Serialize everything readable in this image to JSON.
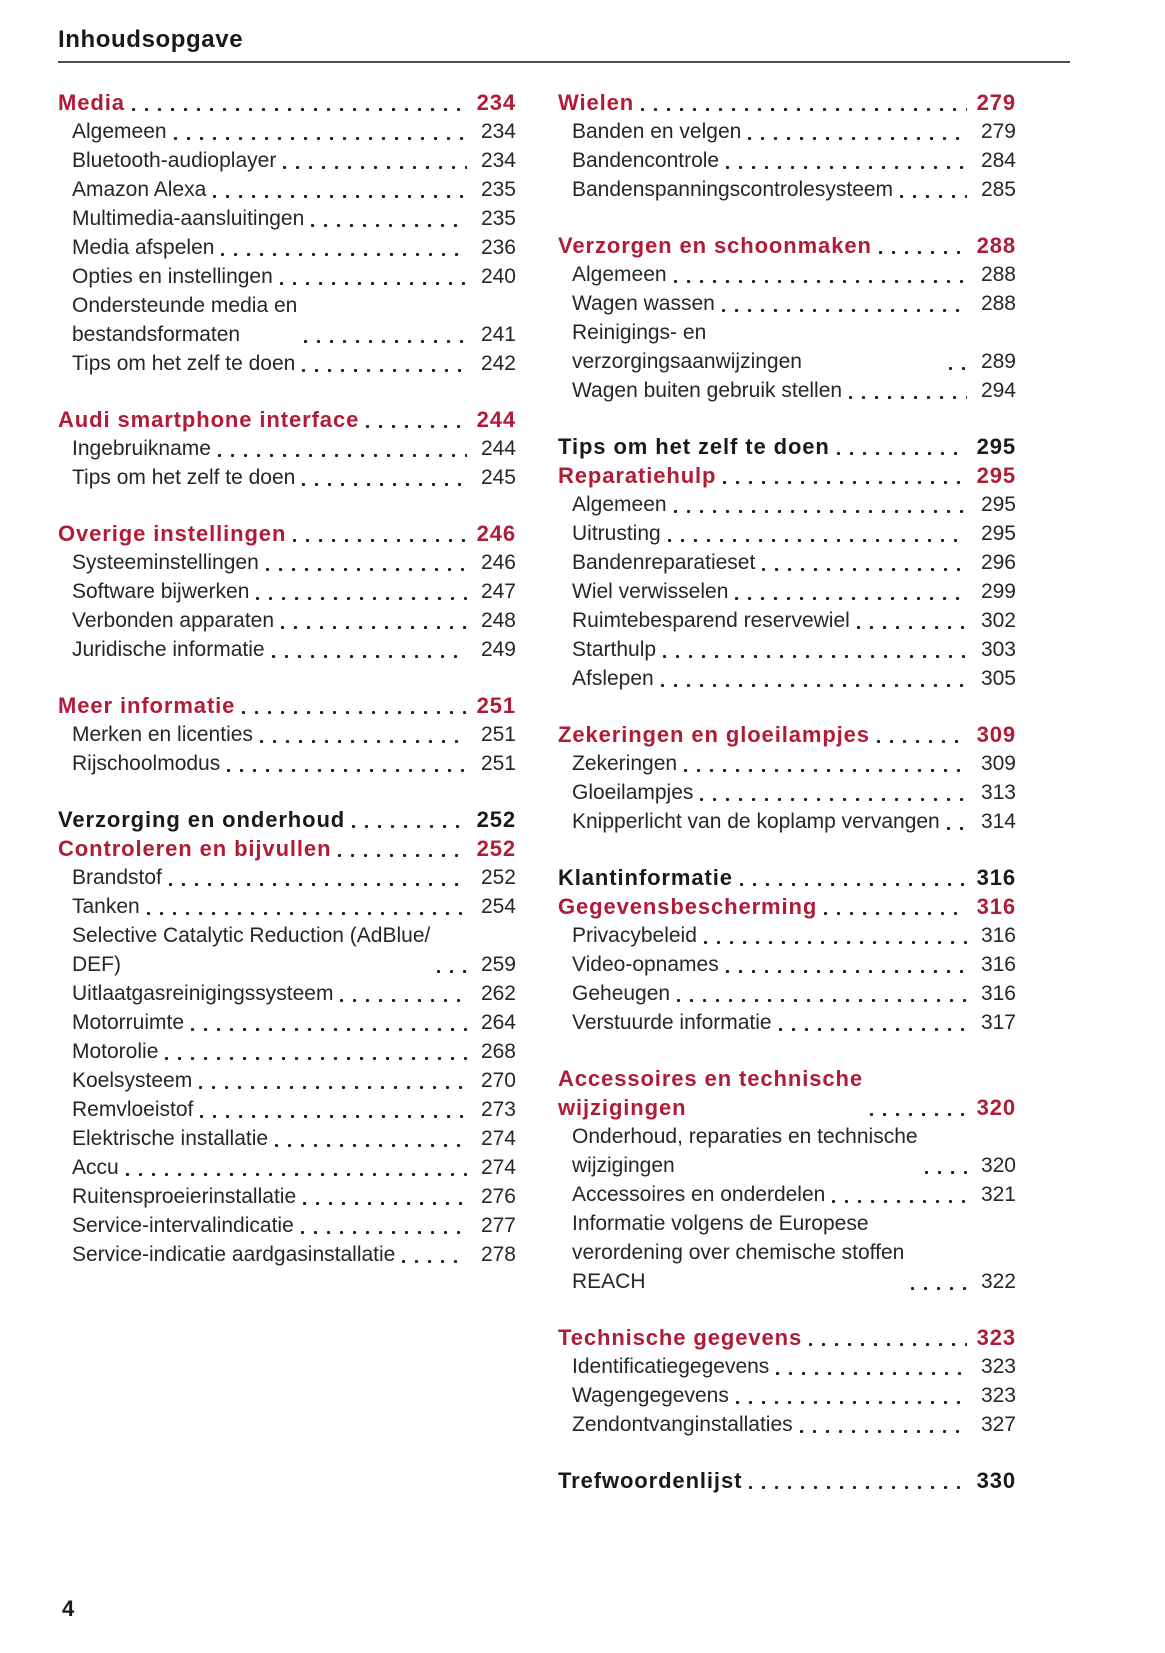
{
  "page": {
    "title": "Inhoudsopgave",
    "page_number": "4"
  },
  "colors": {
    "accent": "#b01c38",
    "text": "#262626",
    "rule": "#4d4d4d",
    "dot": "#1c1c1c"
  },
  "toc": {
    "left_column": [
      {
        "entries": [
          {
            "label": "Media",
            "page": "234",
            "style": "chapter-red"
          },
          {
            "label": "Algemeen",
            "page": "234",
            "style": "sub"
          },
          {
            "label": "Bluetooth-audioplayer",
            "page": "234",
            "style": "sub"
          },
          {
            "label": "Amazon Alexa",
            "page": "235",
            "style": "sub"
          },
          {
            "label": "Multimedia-aansluitingen",
            "page": "235",
            "style": "sub"
          },
          {
            "label": "Media afspelen",
            "page": "236",
            "style": "sub"
          },
          {
            "label": "Opties en instellingen",
            "page": "240",
            "style": "sub"
          },
          {
            "label": "Ondersteunde media en\nbestandsformaten",
            "page": "241",
            "style": "sub"
          },
          {
            "label": "Tips om het zelf te doen",
            "page": "242",
            "style": "sub"
          }
        ]
      },
      {
        "entries": [
          {
            "label": "Audi smartphone interface",
            "page": "244",
            "style": "chapter-red"
          },
          {
            "label": "Ingebruikname",
            "page": "244",
            "style": "sub"
          },
          {
            "label": "Tips om het zelf te doen",
            "page": "245",
            "style": "sub"
          }
        ]
      },
      {
        "entries": [
          {
            "label": "Overige instellingen",
            "page": "246",
            "style": "chapter-red"
          },
          {
            "label": "Systeeminstellingen",
            "page": "246",
            "style": "sub"
          },
          {
            "label": "Software bijwerken",
            "page": "247",
            "style": "sub"
          },
          {
            "label": "Verbonden apparaten",
            "page": "248",
            "style": "sub"
          },
          {
            "label": "Juridische informatie",
            "page": "249",
            "style": "sub"
          }
        ]
      },
      {
        "entries": [
          {
            "label": "Meer informatie",
            "page": "251",
            "style": "chapter-red"
          },
          {
            "label": "Merken en licenties",
            "page": "251",
            "style": "sub"
          },
          {
            "label": "Rijschoolmodus",
            "page": "251",
            "style": "sub"
          }
        ]
      },
      {
        "entries": [
          {
            "label": "Verzorging en onderhoud",
            "page": "252",
            "style": "chapter-black"
          },
          {
            "label": "Controleren en bijvullen",
            "page": "252",
            "style": "chapter-red"
          },
          {
            "label": "Brandstof",
            "page": "252",
            "style": "sub"
          },
          {
            "label": "Tanken",
            "page": "254",
            "style": "sub"
          },
          {
            "label": "Selective Catalytic Reduction (AdBlue/\nDEF)",
            "page": "259",
            "style": "sub"
          },
          {
            "label": "Uitlaatgasreinigingssysteem",
            "page": "262",
            "style": "sub"
          },
          {
            "label": "Motorruimte",
            "page": "264",
            "style": "sub"
          },
          {
            "label": "Motorolie",
            "page": "268",
            "style": "sub"
          },
          {
            "label": "Koelsysteem",
            "page": "270",
            "style": "sub"
          },
          {
            "label": "Remvloeistof",
            "page": "273",
            "style": "sub"
          },
          {
            "label": "Elektrische installatie",
            "page": "274",
            "style": "sub"
          },
          {
            "label": "Accu",
            "page": "274",
            "style": "sub"
          },
          {
            "label": "Ruitensproeierinstallatie",
            "page": "276",
            "style": "sub"
          },
          {
            "label": "Service-intervalindicatie",
            "page": "277",
            "style": "sub"
          },
          {
            "label": "Service-indicatie aardgasinstallatie",
            "page": "278",
            "style": "sub"
          }
        ]
      }
    ],
    "right_column": [
      {
        "entries": [
          {
            "label": "Wielen",
            "page": "279",
            "style": "chapter-red"
          },
          {
            "label": "Banden en velgen",
            "page": "279",
            "style": "sub"
          },
          {
            "label": "Bandencontrole",
            "page": "284",
            "style": "sub"
          },
          {
            "label": "Bandenspanningscontrolesysteem",
            "page": "285",
            "style": "sub"
          }
        ]
      },
      {
        "entries": [
          {
            "label": "Verzorgen en schoonmaken",
            "page": "288",
            "style": "chapter-red"
          },
          {
            "label": "Algemeen",
            "page": "288",
            "style": "sub"
          },
          {
            "label": "Wagen wassen",
            "page": "288",
            "style": "sub"
          },
          {
            "label": "Reinigings- en verzorgingsaanwijzingen",
            "page": "289",
            "style": "sub"
          },
          {
            "label": "Wagen buiten gebruik stellen",
            "page": "294",
            "style": "sub"
          }
        ]
      },
      {
        "entries": [
          {
            "label": "Tips om het zelf te doen",
            "page": "295",
            "style": "chapter-black"
          },
          {
            "label": "Reparatiehulp",
            "page": "295",
            "style": "chapter-red"
          },
          {
            "label": "Algemeen",
            "page": "295",
            "style": "sub"
          },
          {
            "label": "Uitrusting",
            "page": "295",
            "style": "sub"
          },
          {
            "label": "Bandenreparatieset",
            "page": "296",
            "style": "sub"
          },
          {
            "label": "Wiel verwisselen",
            "page": "299",
            "style": "sub"
          },
          {
            "label": "Ruimtebesparend reservewiel",
            "page": "302",
            "style": "sub"
          },
          {
            "label": "Starthulp",
            "page": "303",
            "style": "sub"
          },
          {
            "label": "Afslepen",
            "page": "305",
            "style": "sub"
          }
        ]
      },
      {
        "entries": [
          {
            "label": "Zekeringen en gloeilampjes",
            "page": "309",
            "style": "chapter-red"
          },
          {
            "label": "Zekeringen",
            "page": "309",
            "style": "sub"
          },
          {
            "label": "Gloeilampjes",
            "page": "313",
            "style": "sub"
          },
          {
            "label": "Knipperlicht van de koplamp vervangen",
            "page": "314",
            "style": "sub"
          }
        ]
      },
      {
        "entries": [
          {
            "label": "Klantinformatie",
            "page": "316",
            "style": "chapter-black"
          },
          {
            "label": "Gegevensbescherming",
            "page": "316",
            "style": "chapter-red"
          },
          {
            "label": "Privacybeleid",
            "page": "316",
            "style": "sub"
          },
          {
            "label": "Video-opnames",
            "page": "316",
            "style": "sub"
          },
          {
            "label": "Geheugen",
            "page": "316",
            "style": "sub"
          },
          {
            "label": "Verstuurde informatie",
            "page": "317",
            "style": "sub"
          }
        ]
      },
      {
        "entries": [
          {
            "label": "Accessoires en technische\nwijzigingen",
            "page": "320",
            "style": "chapter-red"
          },
          {
            "label": "Onderhoud, reparaties en technische\nwijzigingen",
            "page": "320",
            "style": "sub"
          },
          {
            "label": "Accessoires en onderdelen",
            "page": "321",
            "style": "sub"
          },
          {
            "label": "Informatie volgens de Europese\nverordening over chemische stoffen\nREACH",
            "page": "322",
            "style": "sub"
          }
        ]
      },
      {
        "entries": [
          {
            "label": "Technische gegevens",
            "page": "323",
            "style": "chapter-red"
          },
          {
            "label": "Identificatiegegevens",
            "page": "323",
            "style": "sub"
          },
          {
            "label": "Wagengegevens",
            "page": "323",
            "style": "sub"
          },
          {
            "label": "Zendontvanginstallaties",
            "page": "327",
            "style": "sub"
          }
        ]
      },
      {
        "entries": [
          {
            "label": "Trefwoordenlijst",
            "page": "330",
            "style": "chapter-black"
          }
        ]
      }
    ]
  }
}
